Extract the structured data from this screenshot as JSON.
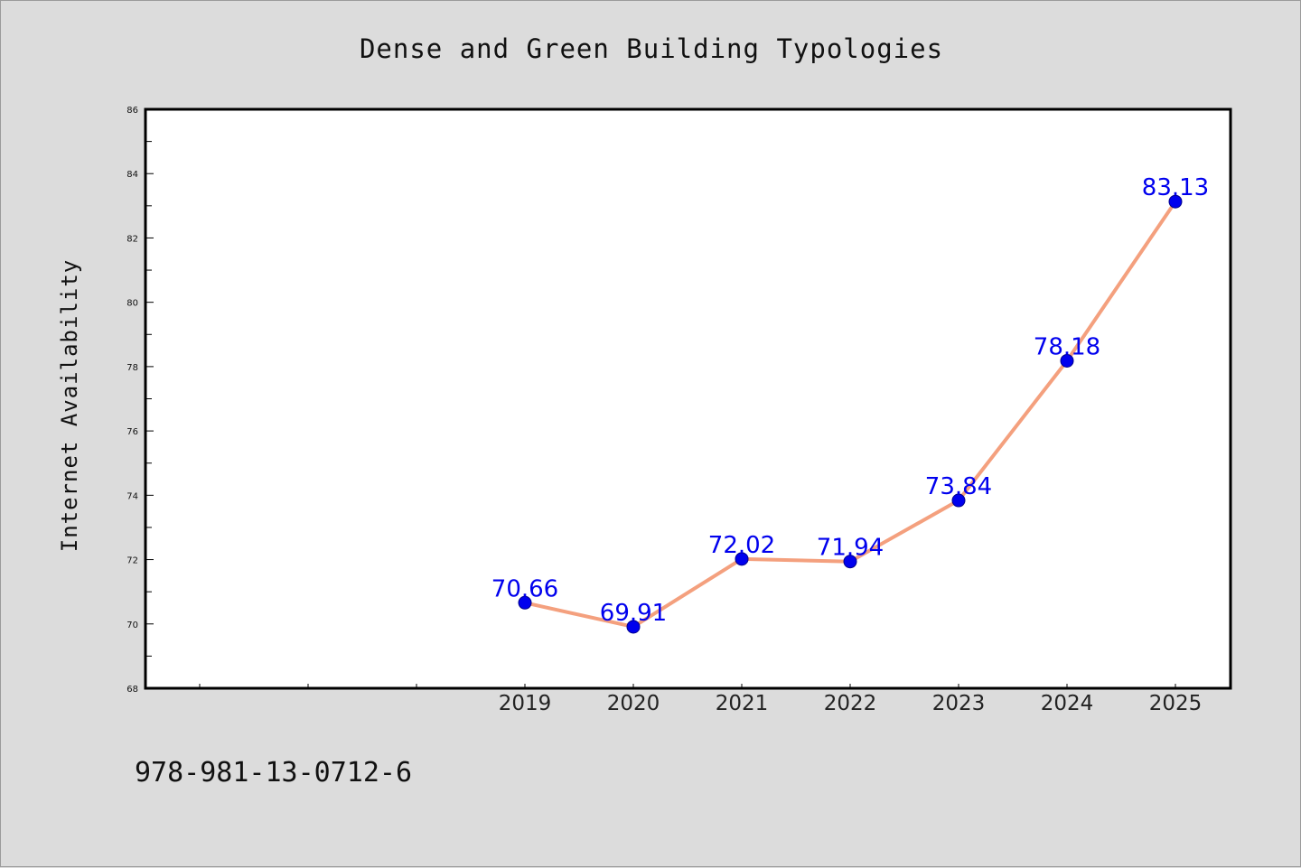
{
  "chart_data": {
    "type": "line",
    "title": "Dense and Green Building Typologies",
    "xlabel": "",
    "ylabel": "Internet Availability",
    "categories": [
      "2019",
      "2020",
      "2021",
      "2022",
      "2023",
      "2024",
      "2025"
    ],
    "series": [
      {
        "values": [
          70.66,
          69.91,
          72.02,
          71.94,
          73.84,
          78.18,
          83.13
        ],
        "data_labels": [
          "70.66",
          "69.91",
          "72.02",
          "71.94",
          "73.84",
          "78.18",
          "83.13"
        ]
      }
    ],
    "ylim": [
      68,
      86
    ],
    "y_ticks": [
      "68",
      "70",
      "72",
      "74",
      "76",
      "78",
      "80",
      "82",
      "84",
      "86"
    ],
    "grid": false,
    "line_color": "#f4a07e",
    "marker_color": "#0000ee",
    "label_color": "#0000ee"
  },
  "footer": {
    "isbn": "978-981-13-0712-6"
  }
}
